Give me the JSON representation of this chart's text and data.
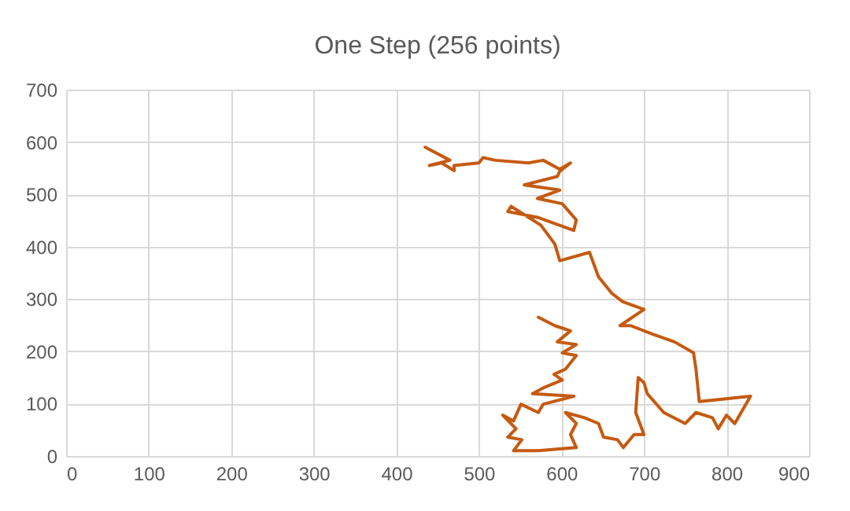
{
  "chart_data": {
    "type": "line",
    "title": "One Step (256 points)",
    "grid": true,
    "marker": "none",
    "line_style": "solid",
    "xlim": [
      0,
      900
    ],
    "xticks": [
      0,
      100,
      200,
      300,
      400,
      500,
      600,
      700,
      800,
      900
    ],
    "ylim": [
      0,
      700
    ],
    "yticks": [
      0,
      100,
      200,
      300,
      400,
      500,
      600,
      700
    ],
    "series": [
      {
        "color": "#c55a11",
        "x": [
          572,
          592,
          611,
          595,
          618,
          601,
          618,
          605,
          591,
          601,
          578,
          565,
          615,
          578,
          572,
          551,
          542,
          529,
          545,
          535,
          552,
          542,
          572,
          618,
          611,
          618,
          605,
          628,
          645,
          651,
          668,
          675,
          688,
          700,
          690,
          693,
          700,
          704,
          724,
          750,
          763,
          783,
          790,
          800,
          810,
          829,
          767,
          763,
          760,
          737,
          710,
          684,
          671,
          700,
          674,
          661,
          645,
          634,
          598,
          592,
          575,
          539,
          535,
          571,
          615,
          618,
          601,
          571,
          598,
          555,
          595,
          598,
          611,
          598,
          578,
          560,
          520,
          505,
          500,
          470,
          470,
          455,
          440,
          465,
          435
        ],
        "values": [
          265,
          249,
          239,
          218,
          213,
          197,
          192,
          166,
          156,
          145,
          130,
          119,
          114,
          99,
          83,
          99,
          67,
          78,
          52,
          36,
          31,
          10,
          10,
          16,
          41,
          62,
          83,
          73,
          62,
          36,
          31,
          16,
          41,
          41,
          83,
          150,
          140,
          119,
          83,
          62,
          83,
          73,
          52,
          78,
          62,
          114,
          104,
          166,
          197,
          218,
          233,
          249,
          249,
          280,
          295,
          311,
          342,
          389,
          373,
          405,
          441,
          477,
          467,
          456,
          431,
          451,
          482,
          492,
          508,
          518,
          534,
          544,
          560,
          548,
          565,
          560,
          565,
          570,
          560,
          555,
          545,
          560,
          555,
          565,
          590
        ]
      }
    ]
  }
}
